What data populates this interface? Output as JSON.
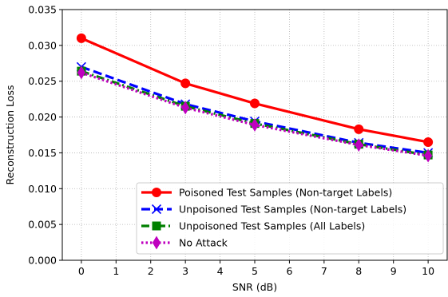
{
  "chart_data": {
    "type": "line",
    "xlabel": "SNR (dB)",
    "ylabel": "Reconstruction Loss",
    "xlim": [
      -0.55,
      10.55
    ],
    "ylim": [
      0,
      0.035
    ],
    "x_ticks": [
      0,
      1,
      2,
      3,
      4,
      5,
      6,
      7,
      8,
      9,
      10
    ],
    "y_ticks": [
      0.0,
      0.005,
      0.01,
      0.015,
      0.02,
      0.025,
      0.03,
      0.035
    ],
    "y_tick_labels": [
      "0.000",
      "0.005",
      "0.010",
      "0.015",
      "0.020",
      "0.025",
      "0.030",
      "0.035"
    ],
    "grid": true,
    "legend_position": "lower-right",
    "series": [
      {
        "name": "Poisoned Test Samples (Non-target Labels)",
        "color": "#ff0000",
        "marker": "circle",
        "dash": "solid",
        "x": [
          0,
          3,
          5,
          8,
          10
        ],
        "y": [
          0.031,
          0.0247,
          0.0219,
          0.0183,
          0.0165
        ]
      },
      {
        "name": "Unpoisoned Test Samples (Non-target Labels)",
        "color": "#0000ff",
        "marker": "x",
        "dash": "dashed",
        "x": [
          0,
          3,
          5,
          8,
          10
        ],
        "y": [
          0.027,
          0.0218,
          0.0194,
          0.0164,
          0.015
        ]
      },
      {
        "name": "Unpoisoned Test Samples (All Labels)",
        "color": "#008000",
        "marker": "square",
        "dash": "dashdot",
        "x": [
          0,
          3,
          5,
          8,
          10
        ],
        "y": [
          0.0264,
          0.0215,
          0.0191,
          0.0162,
          0.0147
        ]
      },
      {
        "name": "No Attack",
        "color": "#bf00bf",
        "marker": "diamond",
        "dash": "dotted",
        "x": [
          0,
          3,
          5,
          8,
          10
        ],
        "y": [
          0.0262,
          0.0213,
          0.0189,
          0.0161,
          0.0146
        ]
      }
    ]
  }
}
